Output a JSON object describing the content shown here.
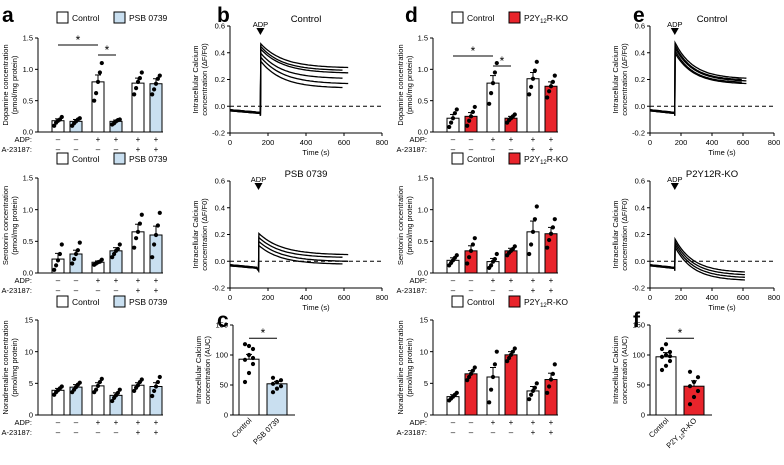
{
  "figure": {
    "panel_letters": [
      "a",
      "b",
      "c",
      "d",
      "e",
      "f"
    ],
    "legend": {
      "control": "Control",
      "psb": "PSB 0739",
      "ko_prefix": "P2Y",
      "ko_sub": "12",
      "ko_suffix": "R-KO"
    },
    "row_labels": {
      "adp": "ADP:",
      "a23187": "A-23187:"
    },
    "signs": {
      "adp": [
        "–",
        "–",
        "+",
        "+",
        "+",
        "+"
      ],
      "a23187": [
        "–",
        "–",
        "–",
        "–",
        "+",
        "+"
      ]
    },
    "star": "*",
    "adp_annotation": "ADP",
    "colors": {
      "control_fill": "#ffffff",
      "psb_fill": "#c9dff0",
      "ko_fill": "#e8242b",
      "trace": "#000000"
    }
  },
  "chart_data": [
    {
      "id": "a-dopamine",
      "type": "bar",
      "ylabel": "Dopamine concentration (pmol/mg protein)",
      "ylim": [
        0,
        1.5
      ],
      "yticks": [
        "0.0",
        "0.5",
        "1.0",
        "1.5"
      ],
      "groups": [
        "ADP– A23187–",
        "ADP+ A23187–",
        "ADP+ A23187+"
      ],
      "series": [
        {
          "name": "Control",
          "values": [
            0.18,
            0.8,
            0.78
          ],
          "sem": [
            0.03,
            0.11,
            0.08
          ],
          "points": [
            [
              0.1,
              0.15,
              0.18,
              0.2,
              0.24
            ],
            [
              0.5,
              0.62,
              0.8,
              0.95,
              1.1
            ],
            [
              0.6,
              0.7,
              0.8,
              0.86,
              0.95
            ]
          ]
        },
        {
          "name": "PSB 0739",
          "values": [
            0.17,
            0.17,
            0.77
          ],
          "sem": [
            0.03,
            0.02,
            0.08
          ],
          "points": [
            [
              0.1,
              0.14,
              0.17,
              0.2,
              0.22
            ],
            [
              0.12,
              0.14,
              0.17,
              0.19,
              0.2
            ],
            [
              0.6,
              0.68,
              0.77,
              0.85,
              0.9
            ]
          ]
        }
      ],
      "significance": [
        [
          "Control ADP–",
          "Control ADP+"
        ],
        [
          "Control ADP+",
          "PSB 0739 ADP+"
        ]
      ]
    },
    {
      "id": "a-serotonin",
      "type": "bar",
      "ylabel": "Serotonin concentration (pmol/mg protein)",
      "ylim": [
        0,
        1.5
      ],
      "yticks": [
        "0.0",
        "0.5",
        "1.0",
        "1.5"
      ],
      "groups": [
        "ADP– A23187–",
        "ADP+ A23187–",
        "ADP+ A23187+"
      ],
      "series": [
        {
          "name": "Control",
          "values": [
            0.22,
            0.17,
            0.65
          ],
          "sem": [
            0.09,
            0.02,
            0.12
          ],
          "points": [
            [
              0.05,
              0.12,
              0.2,
              0.3,
              0.45
            ],
            [
              0.13,
              0.15,
              0.17,
              0.18,
              0.21
            ],
            [
              0.4,
              0.55,
              0.65,
              0.78,
              0.92
            ]
          ]
        },
        {
          "name": "PSB 0739",
          "values": [
            0.3,
            0.35,
            0.6
          ],
          "sem": [
            0.06,
            0.05,
            0.14
          ],
          "points": [
            [
              0.15,
              0.22,
              0.3,
              0.36,
              0.48
            ],
            [
              0.25,
              0.3,
              0.35,
              0.38,
              0.45
            ],
            [
              0.25,
              0.45,
              0.6,
              0.75,
              0.95
            ]
          ]
        }
      ]
    },
    {
      "id": "a-noradrenaline",
      "type": "bar",
      "ylabel": "Noradrenaline concentration (pmol/mg protein)",
      "ylim": [
        0,
        15
      ],
      "yticks": [
        "0",
        "5",
        "10",
        "15"
      ],
      "groups": [
        "ADP– A23187–",
        "ADP+ A23187–",
        "ADP+ A23187+"
      ],
      "series": [
        {
          "name": "Control",
          "values": [
            3.9,
            4.6,
            4.7
          ],
          "sem": [
            0.3,
            0.5,
            0.4
          ],
          "points": [
            [
              3.2,
              3.6,
              3.9,
              4.2,
              4.5
            ],
            [
              3.6,
              4.0,
              4.6,
              5.2,
              5.7
            ],
            [
              3.8,
              4.3,
              4.7,
              5.2,
              5.6
            ]
          ]
        },
        {
          "name": "PSB 0739",
          "values": [
            4.4,
            3.1,
            4.5
          ],
          "sem": [
            0.4,
            0.4,
            0.6
          ],
          "points": [
            [
              3.6,
              4.0,
              4.4,
              4.8,
              5.1
            ],
            [
              2.2,
              2.7,
              3.1,
              3.5,
              4.0
            ],
            [
              3.0,
              3.8,
              4.5,
              5.2,
              6.0
            ]
          ]
        }
      ]
    },
    {
      "id": "b-control",
      "type": "line",
      "title": "Control",
      "xlabel": "Time (s)",
      "ylabel": "Intracellular Calcium concentration (ΔF/F0)",
      "xlim": [
        0,
        800
      ],
      "ylim": [
        -0.2,
        0.6
      ],
      "xticks": [
        "0",
        "200",
        "400",
        "600",
        "800"
      ],
      "yticks": [
        "-0.2",
        "0.0",
        "0.2",
        "0.4",
        "0.6"
      ],
      "event_x": 160,
      "baseline": -0.03,
      "traces": [
        [
          0.47,
          0.29
        ],
        [
          0.45,
          0.27
        ],
        [
          0.43,
          0.25
        ],
        [
          0.4,
          0.21
        ],
        [
          0.37,
          0.17
        ],
        [
          0.34,
          0.14
        ]
      ]
    },
    {
      "id": "b-psb",
      "type": "line",
      "title": "PSB 0739",
      "xlabel": "Time (s)",
      "ylabel": "Intracellular Calcium concentration (ΔF/F0)",
      "xlim": [
        0,
        800
      ],
      "ylim": [
        -0.2,
        0.6
      ],
      "xticks": [
        "0",
        "200",
        "400",
        "600",
        "800"
      ],
      "yticks": [
        "-0.2",
        "0.0",
        "0.2",
        "0.4",
        "0.6"
      ],
      "event_x": 150,
      "baseline": -0.03,
      "traces": [
        [
          0.21,
          0.05
        ],
        [
          0.18,
          0.03
        ],
        [
          0.15,
          0.0
        ],
        [
          0.12,
          -0.02
        ]
      ]
    },
    {
      "id": "c-auc",
      "type": "bar",
      "ylabel": "Intracellular Calcium concentration (AUC)",
      "ylim": [
        0,
        150
      ],
      "yticks": [
        "0",
        "50",
        "100",
        "150"
      ],
      "categories": [
        "Control",
        "PSB 0739"
      ],
      "values": [
        93,
        52
      ],
      "sem": [
        8,
        4
      ],
      "points": [
        [
          55,
          70,
          85,
          92,
          100,
          110,
          118,
          115,
          95
        ],
        [
          38,
          44,
          48,
          52,
          55,
          58,
          62
        ]
      ],
      "significance": [
        [
          "Control",
          "PSB 0739"
        ]
      ]
    },
    {
      "id": "d-dopamine",
      "type": "bar",
      "ylabel": "Dopamine concentration (pmol/mg protein)",
      "ylim": [
        0,
        1.5
      ],
      "yticks": [
        "0.0",
        "0.5",
        "1.0",
        "1.5"
      ],
      "groups": [
        "ADP– A23187–",
        "ADP+ A23187–",
        "ADP+ A23187+"
      ],
      "series": [
        {
          "name": "Control",
          "values": [
            0.22,
            0.78,
            0.85
          ],
          "sem": [
            0.06,
            0.12,
            0.1
          ],
          "points": [
            [
              0.08,
              0.15,
              0.22,
              0.3,
              0.36
            ],
            [
              0.45,
              0.62,
              0.78,
              0.95,
              1.1
            ],
            [
              0.6,
              0.72,
              0.85,
              0.98,
              1.12
            ]
          ]
        },
        {
          "name": "P2Y12R-KO",
          "values": [
            0.25,
            0.22,
            0.73
          ],
          "sem": [
            0.06,
            0.03,
            0.07
          ],
          "points": [
            [
              0.1,
              0.18,
              0.25,
              0.32,
              0.4
            ],
            [
              0.15,
              0.19,
              0.22,
              0.25,
              0.28
            ],
            [
              0.55,
              0.65,
              0.73,
              0.8,
              0.9
            ]
          ]
        }
      ],
      "significance": [
        [
          "Control ADP–",
          "Control ADP+"
        ],
        [
          "Control ADP+",
          "P2Y12R-KO ADP+"
        ]
      ]
    },
    {
      "id": "d-serotonin",
      "type": "bar",
      "ylabel": "Serotonin concentration (pmol/mg protein)",
      "ylim": [
        0,
        1.5
      ],
      "yticks": [
        "0.0",
        "0.5",
        "1.0",
        "1.5"
      ],
      "groups": [
        "ADP– A23187–",
        "ADP+ A23187–",
        "ADP+ A23187+"
      ],
      "series": [
        {
          "name": "Control",
          "values": [
            0.2,
            0.18,
            0.65
          ],
          "sem": [
            0.04,
            0.05,
            0.17
          ],
          "points": [
            [
              0.12,
              0.16,
              0.2,
              0.24,
              0.28
            ],
            [
              0.08,
              0.12,
              0.18,
              0.22,
              0.3
            ],
            [
              0.3,
              0.45,
              0.65,
              0.85,
              1.05
            ]
          ]
        },
        {
          "name": "P2Y12R-KO",
          "values": [
            0.35,
            0.35,
            0.62
          ],
          "sem": [
            0.08,
            0.04,
            0.1
          ],
          "points": [
            [
              0.15,
              0.25,
              0.35,
              0.45,
              0.55
            ],
            [
              0.28,
              0.32,
              0.35,
              0.38,
              0.42
            ],
            [
              0.4,
              0.52,
              0.62,
              0.72,
              0.85
            ]
          ]
        }
      ]
    },
    {
      "id": "d-noradrenaline",
      "type": "bar",
      "ylabel": "Noradrenaline concentration (pmol/mg protein)",
      "ylim": [
        0,
        15
      ],
      "yticks": [
        "0",
        "5",
        "10",
        "15"
      ],
      "groups": [
        "ADP– A23187–",
        "ADP+ A23187–",
        "ADP+ A23187+"
      ],
      "series": [
        {
          "name": "Control",
          "values": [
            2.9,
            6.0,
            3.8
          ],
          "sem": [
            0.3,
            1.5,
            0.7
          ],
          "points": [
            [
              2.3,
              2.6,
              2.9,
              3.2,
              3.5
            ],
            [
              2.0,
              4.0,
              6.0,
              8.0,
              10.0
            ],
            [
              2.5,
              3.2,
              3.8,
              4.3,
              5.0
            ]
          ]
        },
        {
          "name": "P2Y12R-KO",
          "values": [
            6.5,
            9.5,
            5.6
          ],
          "sem": [
            0.5,
            0.5,
            1.0
          ],
          "points": [
            [
              5.5,
              6.0,
              6.5,
              7.0,
              7.5
            ],
            [
              8.5,
              9.0,
              9.5,
              10.0,
              10.5
            ],
            [
              3.5,
              4.5,
              5.6,
              6.5,
              8.0
            ]
          ]
        }
      ]
    },
    {
      "id": "e-control",
      "type": "line",
      "title": "Control",
      "xlabel": "Time (s)",
      "ylabel": "Intracellular Calcium concentration (ΔF/F0)",
      "xlim": [
        0,
        800
      ],
      "ylim": [
        -0.2,
        0.6
      ],
      "xticks": [
        "0",
        "200",
        "400",
        "600",
        "800"
      ],
      "yticks": [
        "-0.2",
        "0.0",
        "0.2",
        "0.4",
        "0.6"
      ],
      "event_x": 160,
      "baseline": -0.03,
      "traces": [
        [
          0.48,
          0.21
        ],
        [
          0.46,
          0.2
        ],
        [
          0.44,
          0.19
        ],
        [
          0.42,
          0.18
        ],
        [
          0.4,
          0.17
        ]
      ]
    },
    {
      "id": "e-ko",
      "type": "line",
      "title": "P2Y12R-KO",
      "xlabel": "Time (s)",
      "ylabel": "Intracellular Calcium concentration (ΔF/F0)",
      "xlim": [
        0,
        800
      ],
      "ylim": [
        -0.2,
        0.6
      ],
      "xticks": [
        "0",
        "200",
        "400",
        "600",
        "800"
      ],
      "yticks": [
        "-0.2",
        "0.0",
        "0.2",
        "0.4",
        "0.6"
      ],
      "event_x": 160,
      "baseline": -0.03,
      "traces": [
        [
          0.17,
          -0.08
        ],
        [
          0.15,
          -0.1
        ],
        [
          0.13,
          -0.12
        ],
        [
          0.11,
          -0.14
        ]
      ]
    },
    {
      "id": "f-auc",
      "type": "bar",
      "ylabel": "Intracellular Calcium concentration (AUC)",
      "ylim": [
        0,
        150
      ],
      "yticks": [
        "0",
        "50",
        "100",
        "150"
      ],
      "categories": [
        "Control",
        "P2Y12R-KO"
      ],
      "values": [
        97,
        48
      ],
      "sem": [
        7,
        9
      ],
      "points": [
        [
          75,
          82,
          90,
          97,
          100,
          105,
          110,
          118,
          98
        ],
        [
          18,
          30,
          40,
          48,
          55,
          63,
          72
        ]
      ],
      "significance": [
        [
          "Control",
          "P2Y12R-KO"
        ]
      ]
    }
  ]
}
